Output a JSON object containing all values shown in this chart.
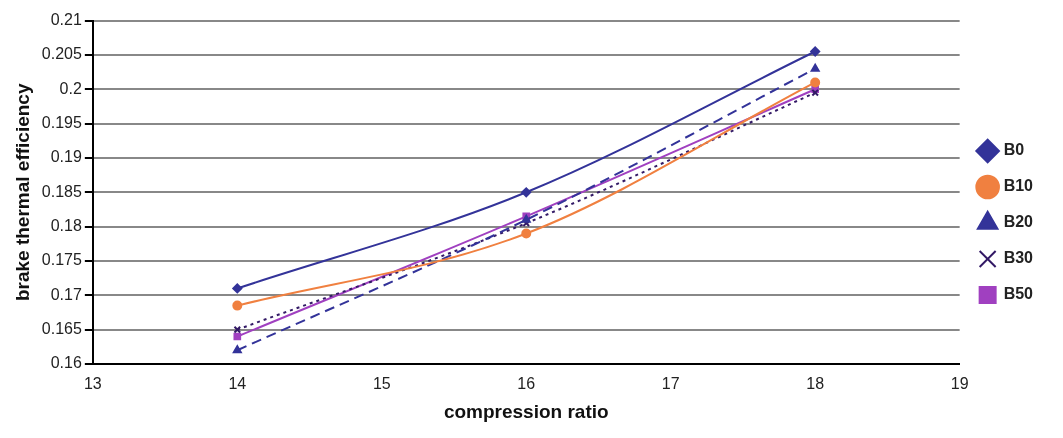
{
  "chart_data": {
    "type": "line",
    "xlabel": "compression ratio",
    "ylabel": "brake thermal efficiency",
    "x": [
      14,
      16,
      18
    ],
    "series": [
      {
        "name": "B0",
        "color": "#333399",
        "values": [
          0.171,
          0.185,
          0.2055
        ],
        "marker": "diamond",
        "line_style": "solid"
      },
      {
        "name": "B10",
        "color": "#f08040",
        "values": [
          0.1685,
          0.179,
          0.201
        ],
        "marker": "circle",
        "line_style": "solid"
      },
      {
        "name": "B20",
        "color": "#333399",
        "values": [
          0.162,
          0.181,
          0.203
        ],
        "marker": "triangle",
        "line_style": "dashed"
      },
      {
        "name": "B30",
        "color": "#331a66",
        "values": [
          0.165,
          0.1805,
          0.1995
        ],
        "marker": "cross",
        "line_style": "dotted"
      },
      {
        "name": "B50",
        "color": "#a040c0",
        "values": [
          0.164,
          0.1815,
          0.2
        ],
        "marker": "square",
        "line_style": "solid"
      }
    ],
    "xlim": [
      13,
      19
    ],
    "xticks": [
      13,
      14,
      15,
      16,
      17,
      18,
      19
    ],
    "ylim": [
      0.16,
      0.21
    ],
    "yticks": [
      0.16,
      0.165,
      0.17,
      0.175,
      0.18,
      0.185,
      0.19,
      0.195,
      0.2,
      0.205,
      0.21
    ],
    "grid": "y",
    "legend": "right"
  }
}
